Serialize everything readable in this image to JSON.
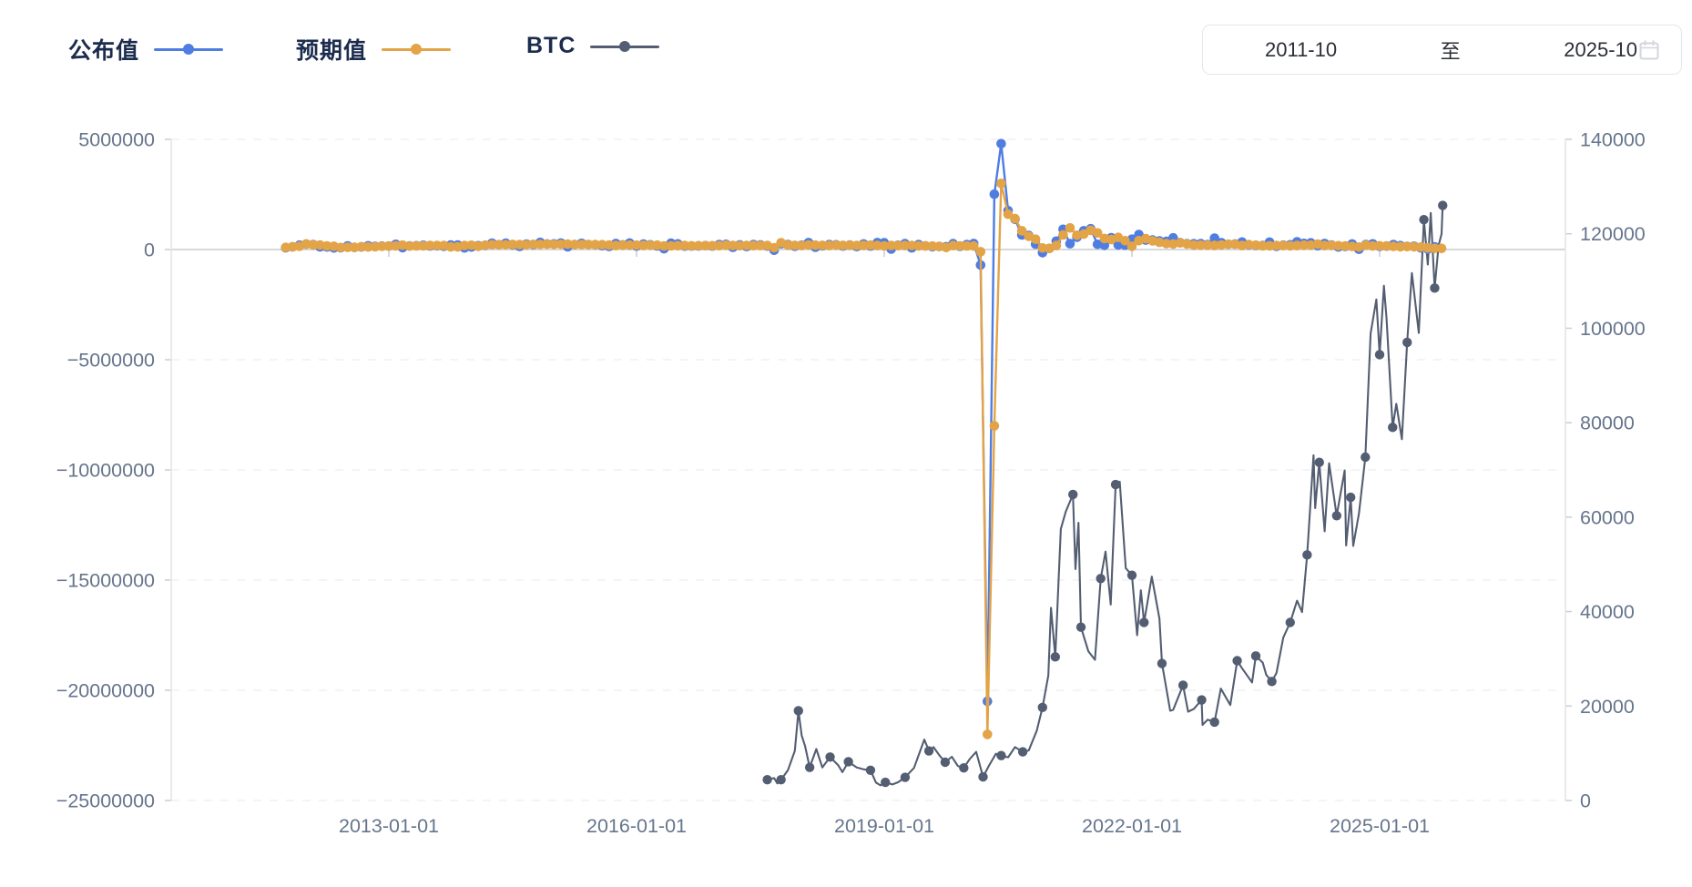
{
  "legend": {
    "items": [
      {
        "label": "公布值",
        "color": "#4f7de2"
      },
      {
        "label": "预期值",
        "color": "#e3a347"
      },
      {
        "label": "BTC",
        "color": "#545e72"
      }
    ]
  },
  "date_range": {
    "start": "2011-10",
    "separator": "至",
    "end": "2025-10"
  },
  "colors": {
    "actual": "#4f7de2",
    "forecast": "#e3a347",
    "btc": "#545e72",
    "grid_dashed": "#ebedf0",
    "zero_line": "#d6d8db",
    "axis_line": "#e2e4e8",
    "tick": "#c9cdd4",
    "axis_label": "#66758c"
  },
  "chart_data": {
    "type": "line",
    "title": "",
    "x_axis": {
      "type": "time",
      "visible_range": [
        "2011-10",
        "2025-10"
      ],
      "tick_labels": [
        "2013-01-01",
        "2016-01-01",
        "2019-01-01",
        "2022-01-01",
        "2025-01-01"
      ]
    },
    "left_axis": {
      "range": [
        -25000000,
        5000000
      ],
      "tick_labels": [
        "5000000",
        "0",
        "−5000000",
        "−10000000",
        "−15000000",
        "−20000000",
        "−25000000"
      ],
      "tick_values": [
        5000000,
        0,
        -5000000,
        -10000000,
        -15000000,
        -20000000,
        -25000000
      ]
    },
    "right_axis": {
      "range": [
        0,
        140000
      ],
      "tick_labels": [
        "140000",
        "120000",
        "100000",
        "80000",
        "60000",
        "40000",
        "20000",
        "0"
      ],
      "tick_values": [
        140000,
        120000,
        100000,
        80000,
        60000,
        40000,
        20000,
        0
      ]
    },
    "series": [
      {
        "name": "公布值",
        "axis": "left",
        "color": "#4f7de2",
        "unit": "value = thousands x 1000",
        "start_month": "2011-10",
        "monthly_values_thousands": [
          80,
          120,
          200,
          243,
          227,
          120,
          115,
          69,
          80,
          163,
          96,
          114,
          171,
          146,
          155,
          157,
          236,
          88,
          165,
          175,
          195,
          162,
          169,
          148,
          204,
          203,
          74,
          113,
          175,
          192,
          288,
          217,
          288,
          209,
          142,
          248,
          214,
          321,
          252,
          257,
          295,
          126,
          223,
          280,
          223,
          215,
          173,
          142,
          271,
          211,
          292,
          151,
          242,
          215,
          160,
          38,
          287,
          255,
          151,
          156,
          161,
          178,
          156,
          227,
          235,
          98,
          211,
          138,
          222,
          209,
          156,
          -33,
          261,
          228,
          148,
          200,
          313,
          103,
          164,
          223,
          213,
          157,
          201,
          134,
          250,
          155,
          312,
          304,
          20,
          196,
          263,
          75,
          224,
          164,
          130,
          136,
          128,
          266,
          145,
          225,
          273,
          -701,
          -20500,
          2509,
          4800,
          1763,
          1371,
          661,
          638,
          245,
          -140,
          49,
          379,
          916,
          266,
          559,
          850,
          943,
          235,
          194,
          531,
          210,
          199,
          467,
          678,
          431,
          428,
          390,
          372,
          528,
          315,
          263,
          261,
          263,
          223,
          517,
          311,
          236,
          253,
          339,
          209,
          187,
          187,
          336,
          150,
          199,
          216,
          353,
          275,
          303,
          175,
          272,
          206,
          114,
          142,
          254,
          12,
          227,
          256,
          143,
          151,
          228,
          177,
          139,
          147,
          73,
          22,
          119
        ]
      },
      {
        "name": "预期值",
        "axis": "left",
        "color": "#e3a347",
        "unit": "value = thousands x 1000",
        "start_month": "2011-10",
        "monthly_values_thousands": [
          95,
          125,
          150,
          250,
          210,
          203,
          163,
          150,
          90,
          100,
          100,
          130,
          115,
          125,
          150,
          155,
          165,
          200,
          153,
          167,
          165,
          184,
          180,
          180,
          120,
          121,
          180,
          196,
          149,
          200,
          218,
          218,
          215,
          233,
          225,
          215,
          235,
          230,
          240,
          230,
          235,
          245,
          228,
          224,
          226,
          223,
          220,
          203,
          182,
          200,
          200,
          200,
          190,
          195,
          200,
          160,
          164,
          175,
          180,
          170,
          175,
          175,
          175,
          175,
          200,
          180,
          174,
          185,
          178,
          183,
          180,
          82,
          310,
          200,
          190,
          180,
          205,
          200,
          189,
          188,
          195,
          190,
          193,
          185,
          190,
          198,
          184,
          165,
          180,
          177,
          181,
          185,
          160,
          164,
          158,
          140,
          89,
          180,
          164,
          160,
          163,
          -100,
          -22000,
          -8000,
          3000,
          1600,
          1400,
          850,
          600,
          469,
          71,
          50,
          182,
          660,
          978,
          650,
          700,
          870,
          750,
          500,
          450,
          550,
          400,
          150,
          400,
          490,
          391,
          325,
          268,
          250,
          300,
          250,
          200,
          200,
          200,
          189,
          205,
          240,
          239,
          180,
          225,
          200,
          170,
          170,
          180,
          180,
          170,
          180,
          200,
          200,
          243,
          180,
          190,
          175,
          160,
          140,
          113,
          200,
          160,
          170,
          160,
          140,
          130,
          138,
          126,
          110,
          75,
          50,
          50
        ]
      },
      {
        "name": "BTC",
        "axis": "right",
        "color": "#545e72",
        "unit": "USD",
        "points": [
          [
            "2017-08-01",
            4400
          ],
          [
            "2017-09-01",
            4750
          ],
          [
            "2017-09-15",
            3600
          ],
          [
            "2017-10-01",
            4400
          ],
          [
            "2017-11-01",
            6400
          ],
          [
            "2017-12-01",
            10500
          ],
          [
            "2017-12-17",
            19000
          ],
          [
            "2018-01-01",
            13800
          ],
          [
            "2018-01-16",
            11500
          ],
          [
            "2018-02-06",
            7000
          ],
          [
            "2018-03-05",
            10900
          ],
          [
            "2018-04-01",
            7000
          ],
          [
            "2018-05-05",
            9200
          ],
          [
            "2018-06-10",
            7500
          ],
          [
            "2018-06-29",
            6000
          ],
          [
            "2018-07-25",
            8200
          ],
          [
            "2018-09-01",
            7000
          ],
          [
            "2018-10-01",
            6600
          ],
          [
            "2018-11-01",
            6400
          ],
          [
            "2018-11-25",
            3800
          ],
          [
            "2018-12-15",
            3200
          ],
          [
            "2019-01-06",
            3850
          ],
          [
            "2019-02-07",
            3400
          ],
          [
            "2019-03-01",
            3850
          ],
          [
            "2019-04-02",
            4900
          ],
          [
            "2019-05-11",
            6900
          ],
          [
            "2019-06-26",
            12900
          ],
          [
            "2019-07-16",
            10500
          ],
          [
            "2019-08-06",
            11300
          ],
          [
            "2019-09-01",
            9600
          ],
          [
            "2019-09-27",
            8100
          ],
          [
            "2019-10-26",
            9250
          ],
          [
            "2019-11-22",
            7300
          ],
          [
            "2019-12-18",
            6900
          ],
          [
            "2020-01-14",
            8800
          ],
          [
            "2020-02-12",
            10300
          ],
          [
            "2020-03-12",
            5000
          ],
          [
            "2020-04-07",
            7300
          ],
          [
            "2020-05-08",
            9900
          ],
          [
            "2020-06-01",
            9500
          ],
          [
            "2020-07-01",
            9150
          ],
          [
            "2020-08-01",
            11300
          ],
          [
            "2020-09-05",
            10300
          ],
          [
            "2020-10-01",
            10600
          ],
          [
            "2020-11-06",
            14800
          ],
          [
            "2020-12-01",
            19700
          ],
          [
            "2020-12-27",
            26500
          ],
          [
            "2021-01-08",
            40800
          ],
          [
            "2021-01-27",
            30400
          ],
          [
            "2021-02-21",
            57500
          ],
          [
            "2021-03-13",
            61200
          ],
          [
            "2021-04-14",
            64800
          ],
          [
            "2021-04-25",
            49000
          ],
          [
            "2021-05-08",
            58800
          ],
          [
            "2021-05-19",
            36700
          ],
          [
            "2021-06-21",
            31600
          ],
          [
            "2021-07-20",
            29800
          ],
          [
            "2021-08-15",
            47000
          ],
          [
            "2021-09-06",
            52700
          ],
          [
            "2021-09-29",
            41500
          ],
          [
            "2021-10-20",
            66900
          ],
          [
            "2021-11-08",
            67500
          ],
          [
            "2021-12-04",
            49200
          ],
          [
            "2022-01-01",
            47700
          ],
          [
            "2022-01-24",
            35000
          ],
          [
            "2022-02-10",
            44500
          ],
          [
            "2022-02-24",
            37700
          ],
          [
            "2022-03-28",
            47400
          ],
          [
            "2022-05-01",
            38500
          ],
          [
            "2022-05-12",
            29000
          ],
          [
            "2022-06-18",
            19000
          ],
          [
            "2022-07-01",
            19200
          ],
          [
            "2022-08-14",
            24400
          ],
          [
            "2022-09-06",
            18800
          ],
          [
            "2022-10-01",
            19400
          ],
          [
            "2022-11-05",
            21300
          ],
          [
            "2022-11-09",
            16000
          ],
          [
            "2022-12-01",
            17100
          ],
          [
            "2023-01-01",
            16600
          ],
          [
            "2023-01-29",
            23700
          ],
          [
            "2023-03-10",
            20200
          ],
          [
            "2023-04-10",
            29600
          ],
          [
            "2023-05-01",
            28000
          ],
          [
            "2023-06-15",
            25000
          ],
          [
            "2023-07-01",
            30600
          ],
          [
            "2023-08-01",
            29200
          ],
          [
            "2023-08-17",
            26600
          ],
          [
            "2023-09-11",
            25200
          ],
          [
            "2023-10-01",
            27000
          ],
          [
            "2023-11-01",
            34500
          ],
          [
            "2023-12-01",
            37700
          ],
          [
            "2024-01-01",
            42300
          ],
          [
            "2024-01-23",
            39900
          ],
          [
            "2024-02-15",
            52000
          ],
          [
            "2024-03-13",
            73100
          ],
          [
            "2024-03-20",
            61900
          ],
          [
            "2024-04-08",
            71600
          ],
          [
            "2024-05-01",
            57000
          ],
          [
            "2024-05-21",
            71400
          ],
          [
            "2024-06-24",
            60300
          ],
          [
            "2024-07-29",
            69900
          ],
          [
            "2024-08-05",
            54000
          ],
          [
            "2024-08-25",
            64200
          ],
          [
            "2024-09-06",
            53900
          ],
          [
            "2024-10-01",
            60800
          ],
          [
            "2024-10-29",
            72700
          ],
          [
            "2024-11-22",
            98900
          ],
          [
            "2024-12-17",
            106100
          ],
          [
            "2025-01-01",
            94400
          ],
          [
            "2025-01-20",
            109000
          ],
          [
            "2025-02-01",
            102000
          ],
          [
            "2025-02-28",
            79000
          ],
          [
            "2025-03-14",
            84000
          ],
          [
            "2025-04-08",
            76500
          ],
          [
            "2025-05-01",
            97000
          ],
          [
            "2025-05-22",
            111700
          ],
          [
            "2025-06-22",
            99000
          ],
          [
            "2025-07-14",
            123000
          ],
          [
            "2025-08-01",
            113500
          ],
          [
            "2025-08-14",
            124400
          ],
          [
            "2025-09-01",
            108500
          ],
          [
            "2025-09-18",
            117500
          ],
          [
            "2025-10-01",
            120000
          ],
          [
            "2025-10-06",
            126000
          ]
        ]
      }
    ]
  }
}
